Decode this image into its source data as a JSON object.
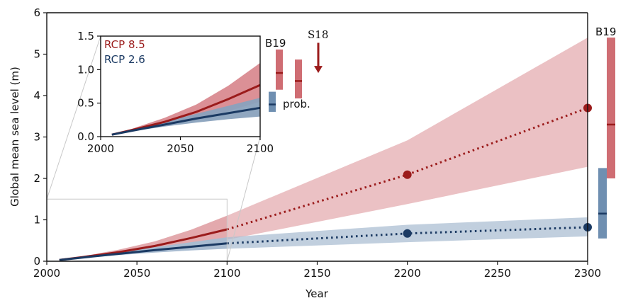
{
  "chart_data": [
    {
      "type": "line",
      "title": "",
      "xlabel": "Year",
      "ylabel": "Global mean sea level (m)",
      "xlim": [
        2000,
        2300
      ],
      "ylim": [
        0,
        6
      ],
      "x_ticks": [
        "2000",
        "2050",
        "2100",
        "2150",
        "2200",
        "2250",
        "2300"
      ],
      "y_ticks": [
        "0",
        "1",
        "2",
        "3",
        "4",
        "5",
        "6"
      ],
      "colors": {
        "rcp85": "#9b1b1b",
        "rcp85_band": "#e3a9ad",
        "rcp26": "#1b3a63",
        "rcp26_band": "#a9bcd1",
        "b19_red": "#cf6d73",
        "b19_blue": "#6f8fb1"
      },
      "series": [
        {
          "name": "RCP 8.5",
          "x": [
            2007,
            2020,
            2040,
            2060,
            2080,
            2100
          ],
          "median": [
            0.03,
            0.1,
            0.22,
            0.37,
            0.56,
            0.77
          ],
          "low": [
            0.03,
            0.08,
            0.16,
            0.26,
            0.38,
            0.52
          ],
          "high": [
            0.03,
            0.12,
            0.28,
            0.48,
            0.76,
            1.1
          ],
          "projection": {
            "x": [
              2100,
              2200,
              2300
            ],
            "median": [
              0.77,
              2.09,
              3.7
            ],
            "low": [
              0.52,
              1.38,
              2.28
            ],
            "high": [
              1.1,
              2.92,
              5.4
            ]
          }
        },
        {
          "name": "RCP 2.6",
          "x": [
            2007,
            2020,
            2040,
            2060,
            2080,
            2100
          ],
          "median": [
            0.03,
            0.09,
            0.18,
            0.27,
            0.35,
            0.43
          ],
          "low": [
            0.03,
            0.08,
            0.15,
            0.21,
            0.26,
            0.3
          ],
          "high": [
            0.03,
            0.11,
            0.22,
            0.34,
            0.46,
            0.58
          ],
          "projection": {
            "x": [
              2100,
              2200,
              2300
            ],
            "median": [
              0.43,
              0.67,
              0.82
            ],
            "low": [
              0.3,
              0.46,
              0.6
            ],
            "high": [
              0.58,
              0.88,
              1.06
            ]
          }
        }
      ],
      "markers": [
        {
          "series": "RCP 8.5",
          "x": 2200,
          "y": 2.09
        },
        {
          "series": "RCP 8.5",
          "x": 2300,
          "y": 3.7
        },
        {
          "series": "RCP 2.6",
          "x": 2200,
          "y": 0.67
        },
        {
          "series": "RCP 2.6",
          "x": 2300,
          "y": 0.82
        }
      ],
      "side_bars": [
        {
          "label": "B19",
          "series": "RCP 8.5",
          "year": 2300,
          "low": 2.0,
          "median": 3.3,
          "high": 5.4
        },
        {
          "label": "",
          "series": "RCP 2.6",
          "year": 2300,
          "low": 0.55,
          "median": 1.15,
          "high": 2.25
        }
      ]
    },
    {
      "type": "line",
      "title": "inset",
      "xlim": [
        2000,
        2100
      ],
      "ylim": [
        0,
        1.5
      ],
      "x_ticks": [
        "2000",
        "2050",
        "2100"
      ],
      "y_ticks": [
        "0.0",
        "0.5",
        "1.0",
        "1.5"
      ],
      "legend": [
        "RCP 8.5",
        "RCP 2.6"
      ],
      "side_bars": [
        {
          "label": "B19",
          "series": "RCP 8.5",
          "low": 0.7,
          "median": 0.95,
          "high": 1.3
        },
        {
          "label": "",
          "series": "RCP 8.5",
          "low": 0.57,
          "median": 0.83,
          "high": 1.15
        },
        {
          "label": "prob.",
          "series": "RCP 2.6",
          "low": 0.37,
          "median": 0.48,
          "high": 0.67
        }
      ],
      "arrow_label": "S18",
      "arrow": {
        "from": 1.4,
        "to": 0.95
      }
    }
  ]
}
